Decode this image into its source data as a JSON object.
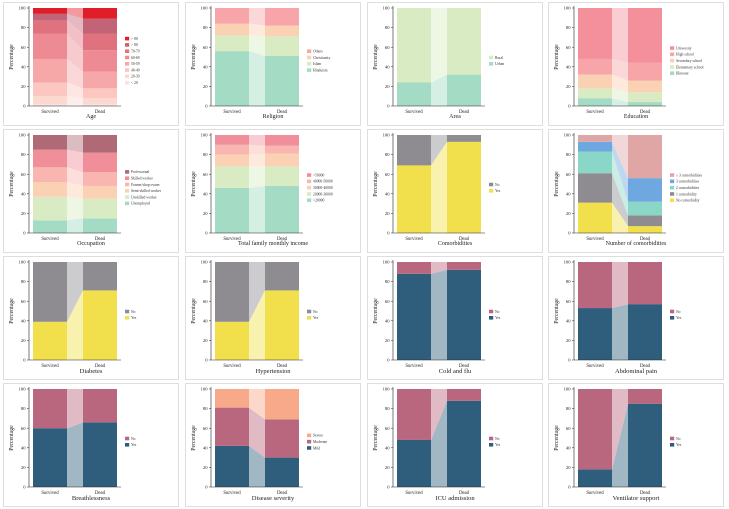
{
  "y_label": "Percentage",
  "chart_data": [
    {
      "type": "bar",
      "stacked": true,
      "title": "Age",
      "categories": [
        "Survived",
        "Dead"
      ],
      "ylim": [
        0,
        100
      ],
      "yticks": [
        0,
        20,
        40,
        60,
        80,
        100
      ],
      "legend_location": "center-right",
      "series": [
        {
          "name": "< 20",
          "color": "#fbe1e1",
          "values": [
            2,
            2
          ]
        },
        {
          "name": "20-39",
          "color": "#fcd9cf",
          "values": [
            8,
            6
          ]
        },
        {
          "name": "40-49",
          "color": "#fbc7c0",
          "values": [
            14,
            10
          ]
        },
        {
          "name": "50-59",
          "color": "#f6a8a8",
          "values": [
            24,
            17
          ]
        },
        {
          "name": "60-69",
          "color": "#ee8a93",
          "values": [
            26,
            22
          ]
        },
        {
          "name": "70-79",
          "color": "#e0717f",
          "values": [
            13,
            17
          ]
        },
        {
          "name": "> 80",
          "color": "#c26475",
          "values": [
            7,
            15
          ]
        },
        {
          "name": "> 80",
          "color": "#e01e2a",
          "values": [
            6,
            11
          ]
        }
      ]
    },
    {
      "type": "bar",
      "stacked": true,
      "title": "Religion",
      "categories": [
        "Survived",
        "Dead"
      ],
      "ylim": [
        0,
        100
      ],
      "yticks": [
        0,
        20,
        40,
        60,
        80,
        100
      ],
      "legend_location": "center-right",
      "series": [
        {
          "name": "Hinduism",
          "color": "#a4dbc5",
          "values": [
            56,
            51
          ]
        },
        {
          "name": "Islam",
          "color": "#d9ebc3",
          "values": [
            16,
            20
          ]
        },
        {
          "name": "Christianity",
          "color": "#fbd1b3",
          "values": [
            12,
            11
          ]
        },
        {
          "name": "Others",
          "color": "#f7a5a8",
          "values": [
            16,
            18
          ]
        }
      ]
    },
    {
      "type": "bar",
      "stacked": true,
      "title": "Area",
      "categories": [
        "Survived",
        "Dead"
      ],
      "ylim": [
        0,
        100
      ],
      "yticks": [
        0,
        20,
        40,
        60,
        80,
        100
      ],
      "legend_location": "center-right",
      "series": [
        {
          "name": "Urban",
          "color": "#a4dbc5",
          "values": [
            24,
            32
          ]
        },
        {
          "name": "Rural",
          "color": "#d9ebc3",
          "values": [
            76,
            68
          ]
        }
      ]
    },
    {
      "type": "bar",
      "stacked": true,
      "title": "Education",
      "categories": [
        "Survived",
        "Dead"
      ],
      "ylim": [
        0,
        100
      ],
      "yticks": [
        0,
        20,
        40,
        60,
        80,
        100
      ],
      "legend_location": "center-right",
      "series": [
        {
          "name": "Illiterate",
          "color": "#a4dbc5",
          "values": [
            8,
            4
          ]
        },
        {
          "name": "Elementary school",
          "color": "#d9ebc3",
          "values": [
            10,
            10
          ]
        },
        {
          "name": "Secondary school",
          "color": "#fbd1b3",
          "values": [
            14,
            12
          ]
        },
        {
          "name": "High school",
          "color": "#f7a5a8",
          "values": [
            16,
            18
          ]
        },
        {
          "name": "University",
          "color": "#f4909b",
          "values": [
            52,
            56
          ]
        }
      ]
    },
    {
      "type": "bar",
      "stacked": true,
      "title": "Occupation",
      "categories": [
        "Survived",
        "Dead"
      ],
      "ylim": [
        0,
        100
      ],
      "yticks": [
        0,
        20,
        40,
        60,
        80,
        100
      ],
      "legend_location": "center-right",
      "series": [
        {
          "name": "Unemployed",
          "color": "#a4dbc5",
          "values": [
            13,
            15
          ]
        },
        {
          "name": "Unskilled worker",
          "color": "#d9ebc3",
          "values": [
            24,
            20
          ]
        },
        {
          "name": "Semi-skilled worker",
          "color": "#fbd1b3",
          "values": [
            15,
            13
          ]
        },
        {
          "name": "Farmer/shop owner",
          "color": "#f9b6b0",
          "values": [
            15,
            14
          ]
        },
        {
          "name": "Skilled worker",
          "color": "#f08e9a",
          "values": [
            18,
            20
          ]
        },
        {
          "name": "Professional",
          "color": "#b06a76",
          "values": [
            15,
            18
          ]
        }
      ]
    },
    {
      "type": "bar",
      "stacked": true,
      "title": "Total family monthly income",
      "categories": [
        "Survived",
        "Dead"
      ],
      "ylim": [
        0,
        100
      ],
      "yticks": [
        0,
        20,
        40,
        60,
        80,
        100
      ],
      "legend_location": "center-right",
      "series": [
        {
          "name": "<20000",
          "color": "#a4dbc5",
          "values": [
            46,
            48
          ]
        },
        {
          "name": "20000-30000",
          "color": "#d9ebc3",
          "values": [
            22,
            20
          ]
        },
        {
          "name": "30000-40000",
          "color": "#fbd1b3",
          "values": [
            12,
            13
          ]
        },
        {
          "name": "40000-50000",
          "color": "#f9b6b0",
          "values": [
            10,
            8
          ]
        },
        {
          "name": ">50000",
          "color": "#f08e9a",
          "values": [
            10,
            11
          ]
        }
      ]
    },
    {
      "type": "bar",
      "stacked": true,
      "title": "Comorbidities",
      "categories": [
        "Survived",
        "Dead"
      ],
      "ylim": [
        0,
        100
      ],
      "yticks": [
        0,
        20,
        40,
        60,
        80,
        100
      ],
      "legend_location": "center-right",
      "series": [
        {
          "name": "Yes",
          "color": "#f1df4b",
          "values": [
            69,
            93
          ]
        },
        {
          "name": "No",
          "color": "#8e8c91",
          "values": [
            31,
            7
          ]
        }
      ]
    },
    {
      "type": "bar",
      "stacked": true,
      "title": "Number of comorbidities",
      "categories": [
        "Survived",
        "Dead"
      ],
      "ylim": [
        0,
        100
      ],
      "yticks": [
        0,
        20,
        40,
        60,
        80,
        100
      ],
      "legend_location": "center-right",
      "series": [
        {
          "name": "No comorbidity",
          "color": "#f1df4b",
          "values": [
            31,
            7
          ]
        },
        {
          "name": "1 comorbidity",
          "color": "#8e8c91",
          "values": [
            30,
            11
          ]
        },
        {
          "name": "2 comorbidities",
          "color": "#8ad6c7",
          "values": [
            22,
            14
          ]
        },
        {
          "name": "3 comorbidities",
          "color": "#6fa8e0",
          "values": [
            10,
            24
          ]
        },
        {
          "name": "≥ 3 comorbidities",
          "color": "#e0a5a5",
          "values": [
            7,
            44
          ]
        }
      ]
    },
    {
      "type": "bar",
      "stacked": true,
      "title": "Diabetes",
      "categories": [
        "Survived",
        "Dead"
      ],
      "ylim": [
        0,
        100
      ],
      "yticks": [
        0,
        20,
        40,
        60,
        80,
        100
      ],
      "legend_location": "center-right",
      "series": [
        {
          "name": "Yes",
          "color": "#f1df4b",
          "values": [
            39,
            71
          ]
        },
        {
          "name": "No",
          "color": "#8e8c91",
          "values": [
            61,
            29
          ]
        }
      ]
    },
    {
      "type": "bar",
      "stacked": true,
      "title": "Hypertension",
      "categories": [
        "Survived",
        "Dead"
      ],
      "ylim": [
        0,
        100
      ],
      "yticks": [
        0,
        20,
        40,
        60,
        80,
        100
      ],
      "legend_location": "center-right",
      "series": [
        {
          "name": "Yes",
          "color": "#f1df4b",
          "values": [
            39,
            71
          ]
        },
        {
          "name": "No",
          "color": "#8e8c91",
          "values": [
            61,
            29
          ]
        }
      ]
    },
    {
      "type": "bar",
      "stacked": true,
      "title": "Cold and flu",
      "categories": [
        "Survived",
        "Dead"
      ],
      "ylim": [
        0,
        100
      ],
      "yticks": [
        0,
        20,
        40,
        60,
        80,
        100
      ],
      "legend_location": "center-right",
      "series": [
        {
          "name": "Yes",
          "color": "#2f5e7c",
          "values": [
            88,
            92
          ]
        },
        {
          "name": "No",
          "color": "#b9677f",
          "values": [
            12,
            8
          ]
        }
      ]
    },
    {
      "type": "bar",
      "stacked": true,
      "title": "Abdominal pain",
      "categories": [
        "Survived",
        "Dead"
      ],
      "ylim": [
        0,
        100
      ],
      "yticks": [
        0,
        20,
        40,
        60,
        80,
        100
      ],
      "legend_location": "center-right",
      "series": [
        {
          "name": "Yes",
          "color": "#2f5e7c",
          "values": [
            53,
            57
          ]
        },
        {
          "name": "No",
          "color": "#b9677f",
          "values": [
            47,
            43
          ]
        }
      ]
    },
    {
      "type": "bar",
      "stacked": true,
      "title": "Breathlessness",
      "categories": [
        "Survived",
        "Dead"
      ],
      "ylim": [
        0,
        100
      ],
      "yticks": [
        0,
        20,
        40,
        60,
        80,
        100
      ],
      "legend_location": "center-right",
      "series": [
        {
          "name": "Yes",
          "color": "#2f5e7c",
          "values": [
            60,
            66
          ]
        },
        {
          "name": "No",
          "color": "#b9677f",
          "values": [
            40,
            34
          ]
        }
      ]
    },
    {
      "type": "bar",
      "stacked": true,
      "title": "Disease severity",
      "categories": [
        "Survived",
        "Dead"
      ],
      "ylim": [
        0,
        100
      ],
      "yticks": [
        0,
        20,
        40,
        60,
        80,
        100
      ],
      "legend_location": "center-right",
      "series": [
        {
          "name": "Mild",
          "color": "#2f5e7c",
          "values": [
            42,
            30
          ]
        },
        {
          "name": "Moderate",
          "color": "#b9677f",
          "values": [
            39,
            39
          ]
        },
        {
          "name": "Severe",
          "color": "#f7a98a",
          "values": [
            19,
            31
          ]
        }
      ]
    },
    {
      "type": "bar",
      "stacked": true,
      "title": "ICU admission",
      "categories": [
        "Survived",
        "Dead"
      ],
      "ylim": [
        0,
        100
      ],
      "yticks": [
        0,
        20,
        40,
        60,
        80,
        100
      ],
      "legend_location": "center-right",
      "series": [
        {
          "name": "Yes",
          "color": "#2f5e7c",
          "values": [
            48,
            88
          ]
        },
        {
          "name": "No",
          "color": "#b9677f",
          "values": [
            52,
            12
          ]
        }
      ]
    },
    {
      "type": "bar",
      "stacked": true,
      "title": "Ventilator support",
      "categories": [
        "Survived",
        "Dead"
      ],
      "ylim": [
        0,
        100
      ],
      "yticks": [
        0,
        20,
        40,
        60,
        80,
        100
      ],
      "legend_location": "center-right",
      "series": [
        {
          "name": "Yes",
          "color": "#2f5e7c",
          "values": [
            18,
            85
          ]
        },
        {
          "name": "No",
          "color": "#b9677f",
          "values": [
            82,
            15
          ]
        }
      ]
    }
  ]
}
